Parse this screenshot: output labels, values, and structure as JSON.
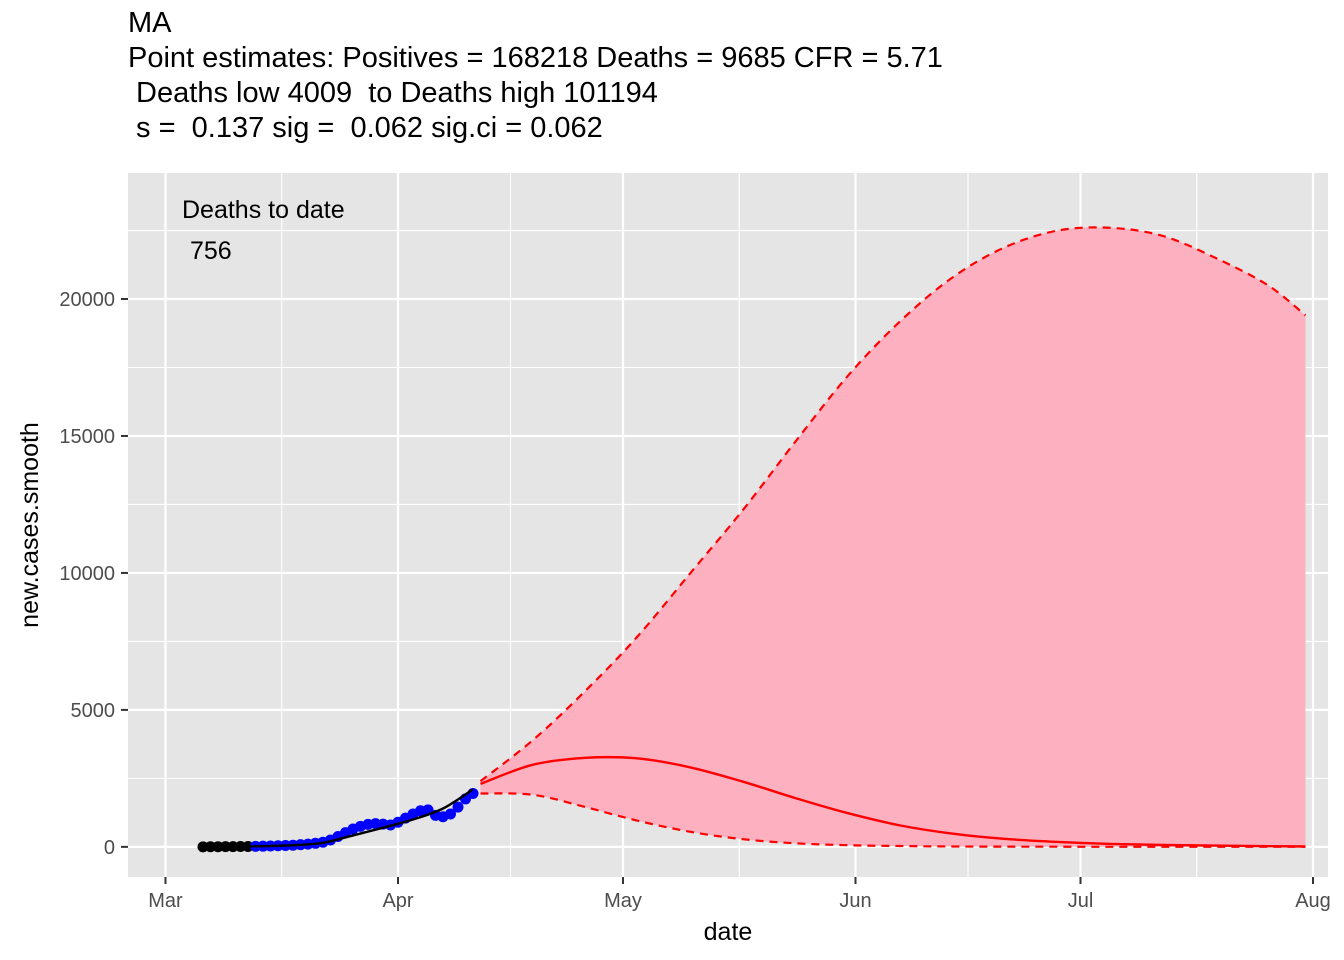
{
  "chart_data": {
    "type": "line",
    "title_lines": [
      "MA",
      "Point estimates: Positives = 168218 Deaths = 9685 CFR = 5.71",
      " Deaths low 4009  to Deaths high 101194",
      " s =  0.137 sig =  0.062 sig.ci = 0.062"
    ],
    "xlabel": "date",
    "ylabel": "new.cases.smooth",
    "x_ticks": [
      "Mar",
      "Apr",
      "May",
      "Jun",
      "Jul",
      "Aug"
    ],
    "x_tick_dates": [
      "2020-03-01",
      "2020-04-01",
      "2020-05-01",
      "2020-06-01",
      "2020-07-01",
      "2020-08-01"
    ],
    "y_ticks": [
      0,
      5000,
      10000,
      15000,
      20000
    ],
    "xlim": [
      "2020-02-25",
      "2020-08-03"
    ],
    "ylim": [
      -1100,
      24600
    ],
    "grid": true,
    "annotation": {
      "line1": "Deaths to date",
      "line2": "756"
    },
    "colors": {
      "panel": "#e5e5e5",
      "grid": "#ffffff",
      "ribbon": "#fdb1c0",
      "forecast": "#ff0000",
      "observed_early": "#000000",
      "observed_recent": "#0000ff",
      "fit": "#000000"
    },
    "series": [
      {
        "role": "observed_early",
        "x": [
          "2020-03-06",
          "2020-03-07",
          "2020-03-08",
          "2020-03-09",
          "2020-03-10",
          "2020-03-11",
          "2020-03-12"
        ],
        "y": [
          2,
          4,
          6,
          8,
          10,
          12,
          15
        ]
      },
      {
        "role": "observed_recent",
        "x": [
          "2020-03-13",
          "2020-03-14",
          "2020-03-15",
          "2020-03-16",
          "2020-03-17",
          "2020-03-18",
          "2020-03-19",
          "2020-03-20",
          "2020-03-21",
          "2020-03-22",
          "2020-03-23",
          "2020-03-24",
          "2020-03-25",
          "2020-03-26",
          "2020-03-27",
          "2020-03-28",
          "2020-03-29",
          "2020-03-30",
          "2020-03-31",
          "2020-04-01",
          "2020-04-02",
          "2020-04-03",
          "2020-04-04",
          "2020-04-05",
          "2020-04-06",
          "2020-04-07",
          "2020-04-08",
          "2020-04-09",
          "2020-04-10",
          "2020-04-11"
        ],
        "y": [
          20,
          25,
          30,
          40,
          50,
          60,
          80,
          100,
          130,
          170,
          250,
          380,
          520,
          650,
          750,
          820,
          850,
          830,
          800,
          900,
          1050,
          1200,
          1320,
          1350,
          1150,
          1100,
          1200,
          1450,
          1750,
          1950
        ]
      },
      {
        "role": "fit",
        "x": [
          "2020-03-06",
          "2020-03-10",
          "2020-03-14",
          "2020-03-18",
          "2020-03-22",
          "2020-03-26",
          "2020-03-30",
          "2020-04-03",
          "2020-04-07",
          "2020-04-11"
        ],
        "y": [
          5,
          10,
          25,
          60,
          150,
          420,
          700,
          1000,
          1400,
          2100
        ]
      },
      {
        "role": "forecast",
        "x": [
          "2020-04-12",
          "2020-04-19",
          "2020-04-26",
          "2020-05-03",
          "2020-05-10",
          "2020-05-17",
          "2020-05-24",
          "2020-05-31",
          "2020-06-07",
          "2020-06-14",
          "2020-06-21",
          "2020-06-28",
          "2020-07-05",
          "2020-07-12",
          "2020-07-19",
          "2020-07-26",
          "2020-07-31"
        ],
        "y": [
          2300,
          3000,
          3250,
          3230,
          2900,
          2380,
          1780,
          1230,
          780,
          480,
          290,
          180,
          110,
          70,
          45,
          25,
          15
        ]
      },
      {
        "role": "upper",
        "x": [
          "2020-04-12",
          "2020-04-19",
          "2020-04-26",
          "2020-05-03",
          "2020-05-10",
          "2020-05-17",
          "2020-05-24",
          "2020-05-31",
          "2020-06-07",
          "2020-06-14",
          "2020-06-21",
          "2020-06-28",
          "2020-07-05",
          "2020-07-12",
          "2020-07-19",
          "2020-07-26",
          "2020-07-31"
        ],
        "y": [
          2400,
          3900,
          5700,
          7700,
          10000,
          12300,
          14800,
          17200,
          19200,
          20800,
          21900,
          22500,
          22600,
          22300,
          21500,
          20500,
          19400
        ]
      },
      {
        "role": "lower",
        "x": [
          "2020-04-12",
          "2020-04-19",
          "2020-04-26",
          "2020-05-03",
          "2020-05-10",
          "2020-05-17",
          "2020-05-24",
          "2020-05-31",
          "2020-06-07",
          "2020-06-14",
          "2020-06-21",
          "2020-06-28",
          "2020-07-05",
          "2020-07-12",
          "2020-07-19",
          "2020-07-26",
          "2020-07-31"
        ],
        "y": [
          1950,
          1900,
          1450,
          950,
          550,
          280,
          130,
          60,
          30,
          15,
          8,
          5,
          3,
          2,
          1,
          1,
          1
        ]
      }
    ]
  }
}
